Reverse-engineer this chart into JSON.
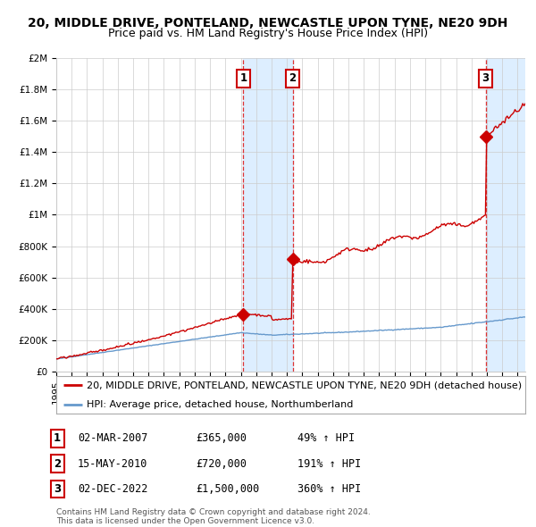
{
  "title": "20, MIDDLE DRIVE, PONTELAND, NEWCASTLE UPON TYNE, NE20 9DH",
  "subtitle": "Price paid vs. HM Land Registry's House Price Index (HPI)",
  "ylim": [
    0,
    2000000
  ],
  "xlim_start": 1995.0,
  "xlim_end": 2025.5,
  "sale1_date": 2007.17,
  "sale1_price": 365000,
  "sale1_label": "1",
  "sale2_date": 2010.37,
  "sale2_price": 720000,
  "sale2_label": "2",
  "sale3_date": 2022.92,
  "sale3_price": 1500000,
  "sale3_label": "3",
  "red_color": "#cc0000",
  "blue_color": "#6699cc",
  "shade_color": "#ddeeff",
  "dashed_color": "#dd3333",
  "grid_color": "#cccccc",
  "bg_color": "#ffffff",
  "legend_label_red": "20, MIDDLE DRIVE, PONTELAND, NEWCASTLE UPON TYNE, NE20 9DH (detached house)",
  "legend_label_blue": "HPI: Average price, detached house, Northumberland",
  "table_rows": [
    [
      "1",
      "02-MAR-2007",
      "£365,000",
      "49% ↑ HPI"
    ],
    [
      "2",
      "15-MAY-2010",
      "£720,000",
      "191% ↑ HPI"
    ],
    [
      "3",
      "02-DEC-2022",
      "£1,500,000",
      "360% ↑ HPI"
    ]
  ],
  "footnote": "Contains HM Land Registry data © Crown copyright and database right 2024.\nThis data is licensed under the Open Government Licence v3.0.",
  "title_fontsize": 10,
  "subtitle_fontsize": 9,
  "tick_fontsize": 7.5,
  "legend_fontsize": 8,
  "table_fontsize": 8.5
}
